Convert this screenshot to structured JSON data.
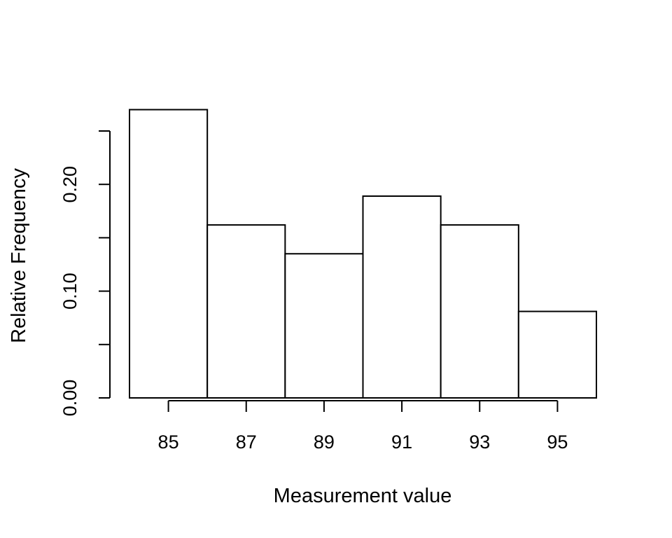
{
  "chart_data": {
    "type": "bar",
    "title": "",
    "xlabel": "Measurement value",
    "ylabel": "Relative Frequency",
    "bins": [
      {
        "start": 84,
        "end": 86,
        "value": 0.27
      },
      {
        "start": 86,
        "end": 88,
        "value": 0.162
      },
      {
        "start": 88,
        "end": 90,
        "value": 0.135
      },
      {
        "start": 90,
        "end": 92,
        "value": 0.189
      },
      {
        "start": 92,
        "end": 94,
        "value": 0.162
      },
      {
        "start": 94,
        "end": 96,
        "value": 0.081
      }
    ],
    "xlim": [
      84,
      96
    ],
    "ylim": [
      0,
      0.25
    ],
    "x_ticks": [
      85,
      87,
      89,
      91,
      93,
      95
    ],
    "x_tick_labels": [
      "85",
      "87",
      "89",
      "91",
      "93",
      "95"
    ],
    "y_ticks": [
      0,
      0.05,
      0.1,
      0.15,
      0.2,
      0.25
    ],
    "y_tick_labels": [
      "0.00",
      "",
      "0.10",
      "",
      "0.20",
      ""
    ],
    "grid": false,
    "legend": "none",
    "bar_fill": "#ffffff",
    "bar_stroke": "#000000"
  }
}
